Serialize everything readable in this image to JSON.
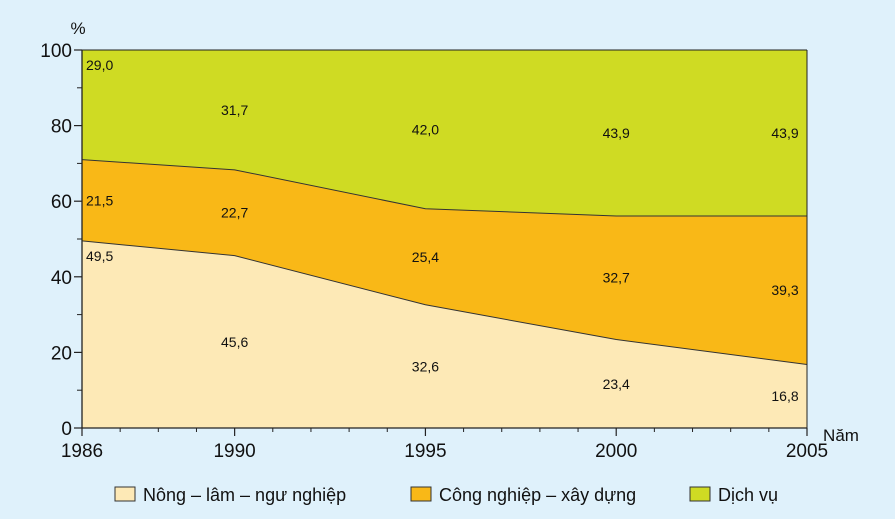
{
  "chart_data": {
    "type": "area",
    "stacked": true,
    "y_unit": "%",
    "x_unit": "Năm",
    "x": [
      "1986",
      "1990",
      "1995",
      "2000",
      "2005"
    ],
    "y_ticks": [
      "0",
      "20",
      "40",
      "60",
      "80",
      "100"
    ],
    "ylim": [
      0,
      100
    ],
    "grid": false,
    "legend_position": "bottom",
    "series": [
      {
        "name": "Nông – lâm – ngư nghiệp",
        "color": "#fde9b6",
        "values": [
          49.5,
          45.6,
          32.6,
          23.4,
          16.8
        ],
        "labels": [
          "49,5",
          "45,6",
          "32,6",
          "23,4",
          "16,8"
        ]
      },
      {
        "name": "Công nghiệp – xây dựng",
        "color": "#f9b817",
        "values": [
          21.5,
          22.7,
          25.4,
          32.7,
          39.3
        ],
        "labels": [
          "21,5",
          "22,7",
          "25,4",
          "32,7",
          "39,3"
        ]
      },
      {
        "name": "Dịch vụ",
        "color": "#cfdb23",
        "values": [
          29.0,
          31.7,
          42.0,
          43.9,
          43.9
        ],
        "labels": [
          "29,0",
          "31,7",
          "42,0",
          "43,9",
          "43,9"
        ]
      }
    ]
  }
}
